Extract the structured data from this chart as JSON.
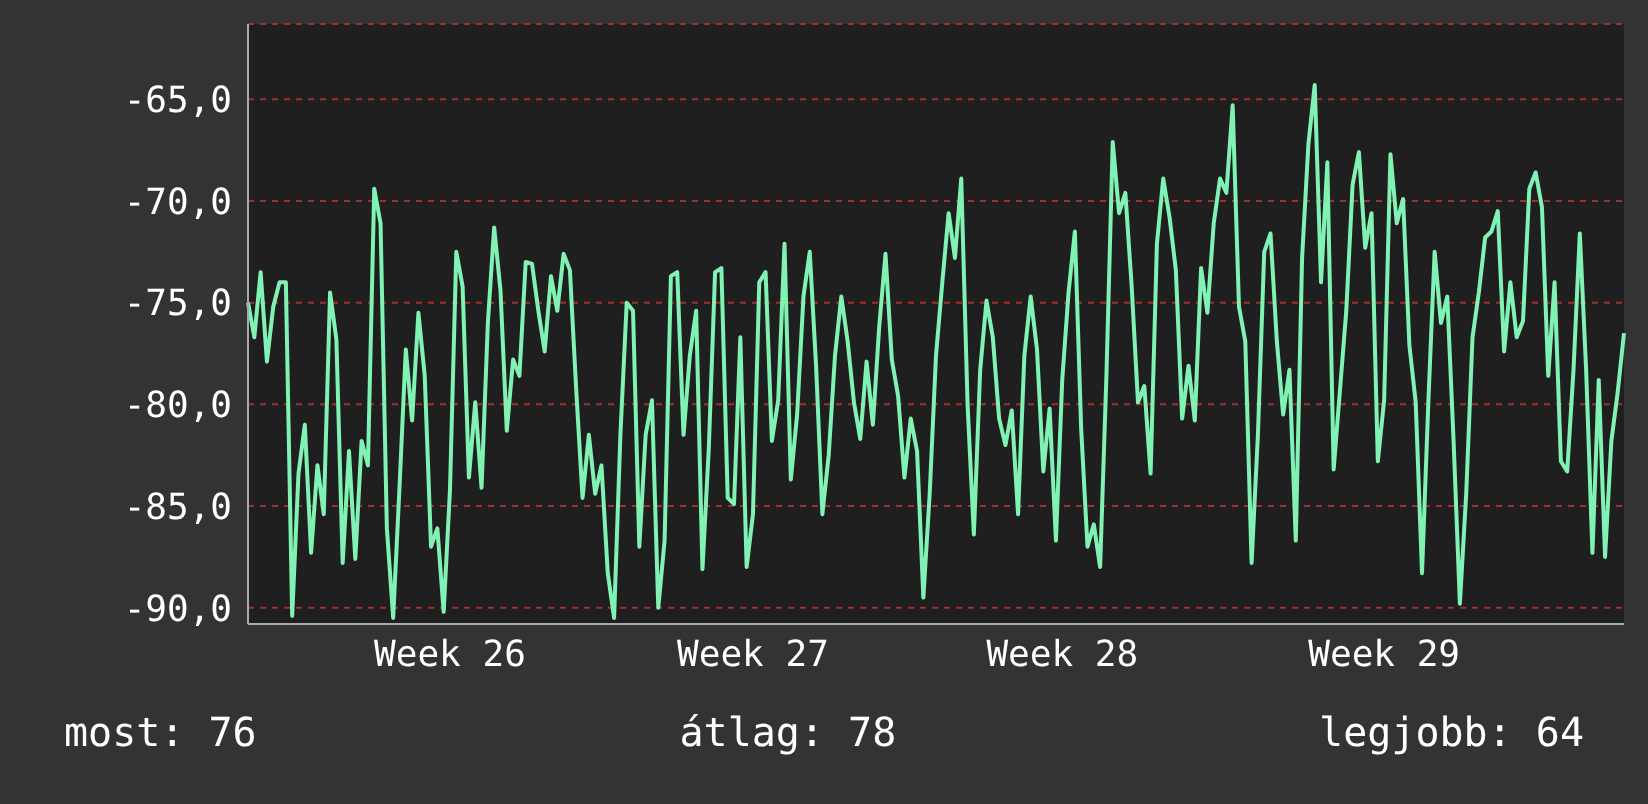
{
  "chart_data": {
    "type": "line",
    "grid": "y",
    "marker": "none",
    "line_style": "solid",
    "ylim": [
      -90.8,
      -61.3
    ],
    "yticks": [
      {
        "value": -90,
        "label": "-90,0"
      },
      {
        "value": -85,
        "label": "-85,0"
      },
      {
        "value": -80,
        "label": "-80,0"
      },
      {
        "value": -75,
        "label": "-75,0"
      },
      {
        "value": -70,
        "label": "-70,0"
      },
      {
        "value": -65,
        "label": "-65,0"
      }
    ],
    "annotations": [
      "most: 76",
      "átlag: 78",
      "legjobb: 64"
    ],
    "categories": [
      null,
      null,
      null,
      null,
      null,
      null,
      null,
      null,
      null,
      null,
      null,
      null,
      null,
      null,
      null,
      null,
      null,
      null,
      null,
      null,
      null,
      null,
      null,
      null,
      null,
      null,
      null,
      null,
      null,
      null,
      null,
      null,
      "Week 26",
      null,
      null,
      null,
      null,
      null,
      null,
      null,
      null,
      null,
      null,
      null,
      null,
      null,
      null,
      null,
      null,
      null,
      null,
      null,
      null,
      null,
      null,
      null,
      null,
      null,
      null,
      null,
      null,
      null,
      null,
      null,
      null,
      null,
      null,
      null,
      null,
      null,
      null,
      null,
      null,
      null,
      null,
      null,
      null,
      null,
      null,
      null,
      "Week 27",
      null,
      null,
      null,
      null,
      null,
      null,
      null,
      null,
      null,
      null,
      null,
      null,
      null,
      null,
      null,
      null,
      null,
      null,
      null,
      null,
      null,
      null,
      null,
      null,
      null,
      null,
      null,
      null,
      null,
      null,
      null,
      null,
      null,
      null,
      null,
      null,
      null,
      null,
      null,
      null,
      null,
      null,
      null,
      null,
      null,
      null,
      null,
      null,
      "Week 28",
      null,
      null,
      null,
      null,
      null,
      null,
      null,
      null,
      null,
      null,
      null,
      null,
      null,
      null,
      null,
      null,
      null,
      null,
      null,
      null,
      null,
      null,
      null,
      null,
      null,
      null,
      null,
      null,
      null,
      null,
      null,
      null,
      null,
      null,
      null,
      null,
      null,
      null,
      null,
      null,
      null,
      null,
      null,
      null,
      null,
      null,
      null,
      null,
      null,
      null,
      "Week 29",
      null,
      null,
      null,
      null,
      null,
      null,
      null,
      null,
      null,
      null,
      null,
      null,
      null,
      null,
      null,
      null,
      null,
      null,
      null,
      null,
      null,
      null,
      null,
      null,
      null,
      null,
      null,
      null,
      null,
      null,
      null,
      null,
      null,
      null,
      null,
      null,
      null,
      null
    ],
    "series": [
      {
        "color": "#80f2b4",
        "values": [
          -75.0,
          -76.7,
          -73.5,
          -77.9,
          -75.2,
          -74.0,
          -74.0,
          -90.4,
          -83.4,
          -81.0,
          -87.3,
          -83.0,
          -85.4,
          -74.5,
          -76.8,
          -87.8,
          -82.3,
          -87.6,
          -81.8,
          -83.0,
          -69.4,
          -71.1,
          -86.1,
          -90.5,
          -84.1,
          -77.3,
          -80.8,
          -75.5,
          -78.6,
          -87.0,
          -86.1,
          -90.2,
          -84.2,
          -72.5,
          -74.2,
          -83.6,
          -79.9,
          -84.1,
          -76.0,
          -71.3,
          -74.4,
          -81.3,
          -77.8,
          -78.6,
          -73.0,
          -73.1,
          -75.4,
          -77.4,
          -73.7,
          -75.4,
          -72.6,
          -73.4,
          -79.3,
          -84.6,
          -81.5,
          -84.4,
          -83.0,
          -88.3,
          -90.5,
          -81.5,
          -75.0,
          -75.4,
          -87.0,
          -81.5,
          -79.8,
          -90.0,
          -86.7,
          -73.7,
          -73.5,
          -81.5,
          -77.6,
          -75.4,
          -88.1,
          -82.2,
          -73.5,
          -73.3,
          -84.6,
          -84.9,
          -76.7,
          -88.0,
          -85.4,
          -74.0,
          -73.5,
          -81.8,
          -79.8,
          -72.1,
          -83.7,
          -80.5,
          -74.7,
          -72.5,
          -78.1,
          -85.4,
          -82.5,
          -77.6,
          -74.7,
          -76.9,
          -79.9,
          -81.7,
          -77.9,
          -81.0,
          -76.2,
          -72.6,
          -77.8,
          -79.6,
          -83.6,
          -80.7,
          -82.3,
          -89.5,
          -84.4,
          -77.6,
          -74.0,
          -70.6,
          -72.8,
          -68.9,
          -80.0,
          -86.4,
          -78.3,
          -74.9,
          -76.7,
          -80.7,
          -82.0,
          -80.3,
          -85.4,
          -77.6,
          -74.7,
          -77.3,
          -83.3,
          -80.2,
          -86.7,
          -78.8,
          -74.5,
          -71.5,
          -81.2,
          -87.0,
          -85.9,
          -88.0,
          -78.6,
          -67.1,
          -70.6,
          -69.6,
          -74.2,
          -79.9,
          -79.1,
          -83.4,
          -72.1,
          -68.9,
          -70.8,
          -73.4,
          -80.7,
          -78.1,
          -80.8,
          -73.3,
          -75.5,
          -71.1,
          -68.9,
          -69.6,
          -65.3,
          -75.2,
          -76.9,
          -87.8,
          -81.5,
          -72.5,
          -71.6,
          -76.9,
          -80.5,
          -78.3,
          -86.7,
          -72.8,
          -67.2,
          -64.3,
          -74.0,
          -68.1,
          -83.2,
          -79.3,
          -75.4,
          -69.2,
          -67.6,
          -72.3,
          -70.6,
          -82.8,
          -79.8,
          -67.7,
          -71.1,
          -69.9,
          -77.1,
          -79.9,
          -88.3,
          -79.9,
          -72.5,
          -76.0,
          -74.7,
          -81.8,
          -89.8,
          -84.4,
          -76.7,
          -74.5,
          -71.8,
          -71.5,
          -70.5,
          -77.4,
          -74.0,
          -76.7,
          -75.9,
          -69.4,
          -68.6,
          -70.3,
          -78.6,
          -74.0,
          -82.8,
          -83.3,
          -78.3,
          -71.6,
          -78.3,
          -87.3,
          -78.8,
          -87.5,
          -81.8,
          -79.4,
          -76.5
        ]
      }
    ]
  }
}
